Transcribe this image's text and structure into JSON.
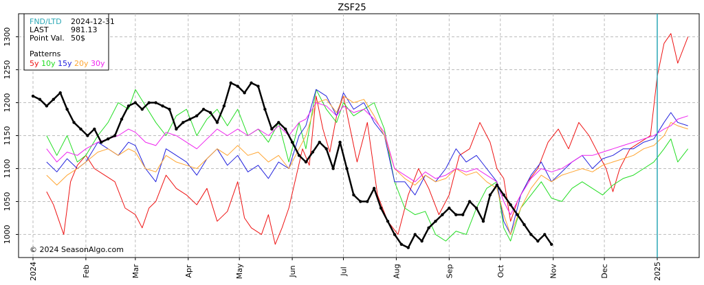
{
  "chart_data": {
    "type": "line",
    "title": "ZSF25",
    "info": {
      "fnd_label": "FND/LTD",
      "fnd_value": "2024-12-31",
      "last_label": "LAST",
      "last_value": "981.13",
      "pv_label": "Point Val.",
      "pv_value": "50$",
      "patterns_label": "Patterns"
    },
    "copyright": "© 2024 SeasonAlgo.com",
    "ylim": [
      965,
      1335
    ],
    "yticks": [
      1000,
      1050,
      1100,
      1150,
      1200,
      1250,
      1300
    ],
    "xlim": [
      0,
      366
    ],
    "xticks": [
      {
        "label": "2024",
        "x": 0
      },
      {
        "label": "Feb",
        "x": 31
      },
      {
        "label": "Mar",
        "x": 60
      },
      {
        "label": "Apr",
        "x": 91
      },
      {
        "label": "May",
        "x": 121
      },
      {
        "label": "Jun",
        "x": 152
      },
      {
        "label": "Jul",
        "x": 182
      },
      {
        "label": "Aug",
        "x": 213
      },
      {
        "label": "Sep",
        "x": 244
      },
      {
        "label": "Oct",
        "x": 274
      },
      {
        "label": "Nov",
        "x": 305
      },
      {
        "label": "Dec",
        "x": 335
      },
      {
        "label": "2025",
        "x": 366
      }
    ],
    "grid": true,
    "legend_position": "top-left",
    "vline": {
      "x": 366,
      "color": "#2aa7b5"
    },
    "series": [
      {
        "name": "5y",
        "color": "#ee1111",
        "width": 1,
        "x": [
          8,
          12,
          18,
          22,
          26,
          31,
          36,
          42,
          48,
          54,
          60,
          64,
          68,
          72,
          78,
          84,
          90,
          96,
          102,
          108,
          114,
          120,
          124,
          128,
          134,
          138,
          142,
          146,
          150,
          154,
          158,
          162,
          166,
          170,
          174,
          178,
          182,
          186,
          190,
          196,
          202,
          208,
          214,
          220,
          226,
          232,
          238,
          244,
          250,
          256,
          262,
          268,
          272,
          276,
          280,
          284,
          290,
          296,
          302,
          308,
          314,
          320,
          326,
          330,
          336,
          340,
          344,
          350,
          356,
          362,
          366,
          370,
          374,
          378,
          384
        ],
        "y": [
          1065,
          1045,
          1000,
          1080,
          1105,
          1120,
          1100,
          1090,
          1080,
          1040,
          1030,
          1010,
          1040,
          1050,
          1090,
          1070,
          1060,
          1045,
          1070,
          1020,
          1035,
          1080,
          1025,
          1010,
          1000,
          1030,
          985,
          1010,
          1040,
          1085,
          1130,
          1105,
          1210,
          1160,
          1125,
          1180,
          1210,
          1160,
          1110,
          1170,
          1060,
          1020,
          1000,
          1060,
          1100,
          1070,
          1030,
          1060,
          1120,
          1130,
          1170,
          1140,
          1100,
          1085,
          1020,
          1050,
          1080,
          1100,
          1140,
          1160,
          1130,
          1170,
          1150,
          1130,
          1100,
          1065,
          1100,
          1130,
          1140,
          1150,
          1240,
          1290,
          1305,
          1260,
          1300
        ]
      },
      {
        "name": "10y",
        "color": "#22dd22",
        "width": 1,
        "x": [
          8,
          14,
          20,
          26,
          31,
          38,
          44,
          50,
          56,
          60,
          66,
          72,
          78,
          84,
          90,
          96,
          102,
          108,
          114,
          120,
          126,
          132,
          138,
          144,
          150,
          156,
          160,
          166,
          172,
          178,
          182,
          188,
          194,
          200,
          206,
          212,
          218,
          224,
          230,
          236,
          242,
          248,
          254,
          260,
          266,
          272,
          276,
          280,
          286,
          292,
          298,
          304,
          310,
          316,
          322,
          328,
          334,
          340,
          346,
          352,
          358,
          364,
          370,
          374,
          378,
          384
        ],
        "y": [
          1150,
          1120,
          1150,
          1110,
          1120,
          1150,
          1170,
          1200,
          1190,
          1220,
          1195,
          1170,
          1150,
          1180,
          1190,
          1150,
          1175,
          1190,
          1165,
          1190,
          1150,
          1160,
          1140,
          1170,
          1110,
          1170,
          1130,
          1220,
          1190,
          1170,
          1200,
          1180,
          1190,
          1200,
          1160,
          1080,
          1040,
          1030,
          1035,
          1000,
          990,
          1005,
          1000,
          1040,
          1070,
          1080,
          1010,
          990,
          1040,
          1060,
          1080,
          1055,
          1050,
          1070,
          1080,
          1070,
          1060,
          1075,
          1085,
          1090,
          1100,
          1110,
          1130,
          1145,
          1110,
          1130
        ]
      },
      {
        "name": "15y",
        "color": "#2222dd",
        "width": 1,
        "x": [
          8,
          14,
          20,
          26,
          31,
          38,
          44,
          50,
          56,
          60,
          66,
          72,
          78,
          84,
          90,
          96,
          102,
          108,
          114,
          120,
          126,
          132,
          138,
          144,
          150,
          156,
          160,
          166,
          172,
          178,
          182,
          188,
          194,
          200,
          206,
          212,
          218,
          224,
          230,
          236,
          242,
          248,
          254,
          260,
          266,
          272,
          276,
          280,
          286,
          292,
          298,
          304,
          310,
          316,
          322,
          328,
          334,
          340,
          346,
          352,
          358,
          364,
          370,
          374,
          378,
          384
        ],
        "y": [
          1110,
          1095,
          1115,
          1100,
          1110,
          1140,
          1130,
          1120,
          1140,
          1135,
          1100,
          1080,
          1130,
          1120,
          1110,
          1090,
          1115,
          1130,
          1105,
          1120,
          1095,
          1105,
          1085,
          1110,
          1100,
          1150,
          1165,
          1220,
          1210,
          1180,
          1215,
          1190,
          1200,
          1170,
          1150,
          1080,
          1080,
          1060,
          1090,
          1080,
          1100,
          1130,
          1110,
          1120,
          1100,
          1080,
          1020,
          1000,
          1060,
          1090,
          1110,
          1080,
          1095,
          1110,
          1120,
          1100,
          1115,
          1120,
          1130,
          1130,
          1140,
          1145,
          1170,
          1185,
          1170,
          1165
        ]
      },
      {
        "name": "20y",
        "color": "#ffa531",
        "width": 1,
        "x": [
          8,
          14,
          20,
          26,
          31,
          38,
          44,
          50,
          56,
          60,
          66,
          72,
          78,
          84,
          90,
          96,
          102,
          108,
          114,
          120,
          126,
          132,
          138,
          144,
          150,
          156,
          160,
          166,
          172,
          178,
          182,
          188,
          194,
          200,
          206,
          212,
          218,
          224,
          230,
          236,
          242,
          248,
          254,
          260,
          266,
          272,
          276,
          280,
          286,
          292,
          298,
          304,
          310,
          316,
          322,
          328,
          334,
          340,
          346,
          352,
          358,
          364,
          370,
          374,
          378,
          384
        ],
        "y": [
          1090,
          1075,
          1090,
          1100,
          1110,
          1125,
          1130,
          1120,
          1130,
          1125,
          1100,
          1095,
          1120,
          1110,
          1105,
          1100,
          1115,
          1130,
          1120,
          1135,
          1120,
          1125,
          1110,
          1120,
          1100,
          1130,
          1150,
          1200,
          1205,
          1185,
          1210,
          1200,
          1205,
          1180,
          1150,
          1100,
          1085,
          1075,
          1090,
          1080,
          1085,
          1100,
          1090,
          1095,
          1080,
          1070,
          1030,
          1000,
          1040,
          1070,
          1090,
          1080,
          1090,
          1095,
          1100,
          1095,
          1105,
          1110,
          1115,
          1120,
          1130,
          1135,
          1150,
          1170,
          1165,
          1160
        ]
      },
      {
        "name": "30y",
        "color": "#ee22ee",
        "width": 1,
        "x": [
          8,
          14,
          20,
          26,
          31,
          38,
          44,
          50,
          56,
          60,
          66,
          72,
          78,
          84,
          90,
          96,
          102,
          108,
          114,
          120,
          126,
          132,
          138,
          144,
          150,
          156,
          160,
          166,
          172,
          178,
          182,
          188,
          194,
          200,
          206,
          212,
          218,
          224,
          230,
          236,
          242,
          248,
          254,
          260,
          266,
          272,
          276,
          280,
          286,
          292,
          298,
          304,
          310,
          316,
          322,
          328,
          334,
          340,
          346,
          352,
          358,
          364,
          370,
          374,
          378,
          384
        ],
        "y": [
          1130,
          1110,
          1125,
          1120,
          1130,
          1140,
          1145,
          1150,
          1160,
          1155,
          1140,
          1135,
          1155,
          1150,
          1140,
          1130,
          1145,
          1160,
          1150,
          1160,
          1150,
          1160,
          1150,
          1165,
          1150,
          1170,
          1175,
          1200,
          1195,
          1180,
          1195,
          1185,
          1190,
          1175,
          1155,
          1100,
          1090,
          1080,
          1095,
          1085,
          1090,
          1100,
          1095,
          1100,
          1090,
          1080,
          1050,
          1030,
          1060,
          1085,
          1100,
          1095,
          1100,
          1110,
          1120,
          1120,
          1125,
          1130,
          1135,
          1140,
          1145,
          1150,
          1160,
          1165,
          1175,
          1180
        ]
      },
      {
        "name": "",
        "color": "#000000",
        "width": 2.5,
        "markers": true,
        "x": [
          0,
          4,
          8,
          12,
          16,
          20,
          24,
          28,
          32,
          36,
          40,
          44,
          48,
          52,
          56,
          60,
          64,
          68,
          72,
          76,
          80,
          84,
          88,
          92,
          96,
          100,
          104,
          108,
          112,
          116,
          120,
          124,
          128,
          132,
          136,
          140,
          144,
          148,
          152,
          156,
          160,
          164,
          168,
          172,
          176,
          180,
          184,
          188,
          192,
          196,
          200,
          204,
          208,
          212,
          216,
          220,
          224,
          228,
          232,
          236,
          240,
          244,
          248,
          252,
          256,
          260,
          264,
          268,
          272,
          276,
          280,
          284,
          288,
          292,
          296,
          300,
          304
        ],
        "y": [
          1210,
          1205,
          1195,
          1205,
          1215,
          1190,
          1170,
          1160,
          1150,
          1160,
          1140,
          1145,
          1150,
          1175,
          1195,
          1200,
          1190,
          1200,
          1200,
          1195,
          1190,
          1160,
          1170,
          1175,
          1180,
          1190,
          1185,
          1170,
          1195,
          1230,
          1225,
          1215,
          1230,
          1225,
          1190,
          1160,
          1170,
          1160,
          1140,
          1120,
          1110,
          1125,
          1140,
          1130,
          1100,
          1140,
          1100,
          1060,
          1050,
          1050,
          1070,
          1040,
          1020,
          1000,
          985,
          980,
          1000,
          990,
          1010,
          1020,
          1030,
          1040,
          1030,
          1030,
          1050,
          1040,
          1020,
          1060,
          1075,
          1060,
          1045,
          1030,
          1015,
          1000,
          990,
          1000,
          985
        ]
      }
    ]
  }
}
